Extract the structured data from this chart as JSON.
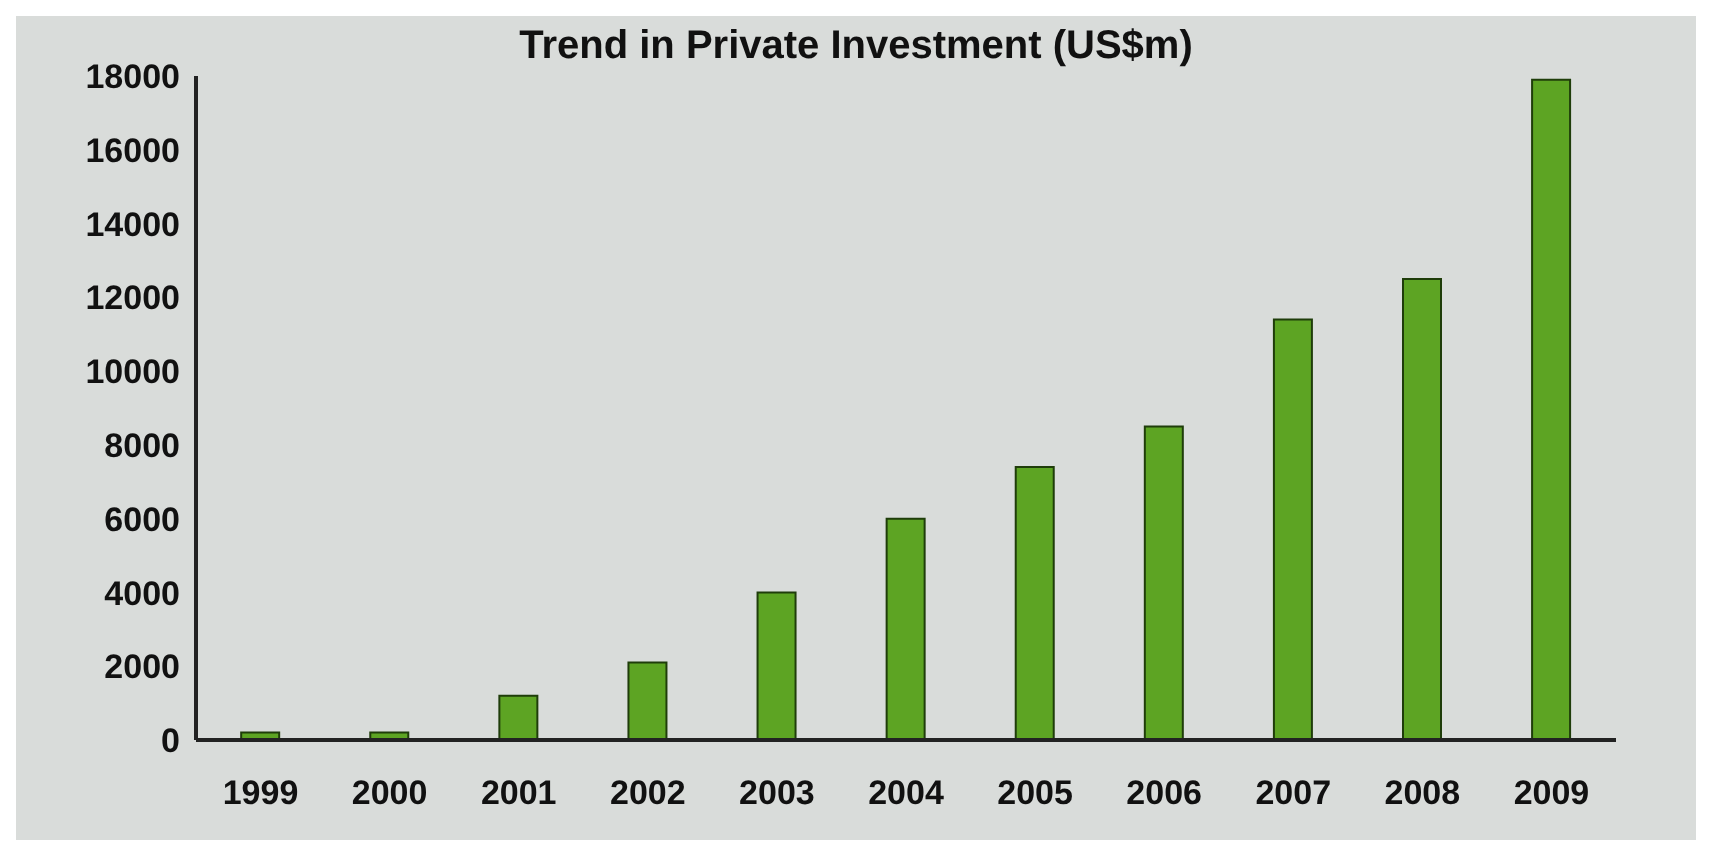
{
  "chart_data": {
    "type": "bar",
    "title": "Trend in Private Investment (US$m)",
    "categories": [
      "1999",
      "2000",
      "2001",
      "2002",
      "2003",
      "2004",
      "2005",
      "2006",
      "2007",
      "2008",
      "2009"
    ],
    "values": [
      200,
      200,
      1200,
      2100,
      4000,
      6000,
      7400,
      8500,
      11400,
      12500,
      17900
    ],
    "color": "#5da423",
    "ylim": [
      0,
      18000
    ],
    "yticks": [
      0,
      2000,
      4000,
      6000,
      8000,
      10000,
      12000,
      14000,
      16000,
      18000
    ],
    "grid": false
  }
}
